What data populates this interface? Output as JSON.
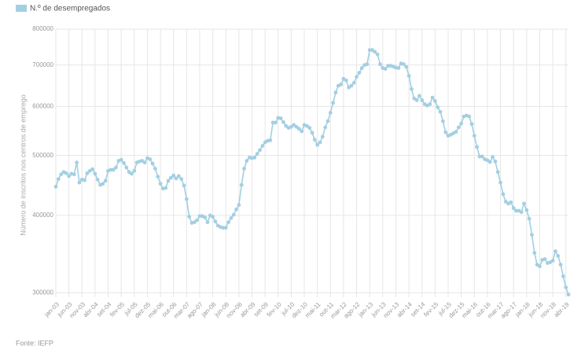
{
  "chart_data": {
    "type": "line",
    "y_label": "Número de inscritos nos centros de emprego",
    "source": "Fonte: IEFP",
    "log_scale": true,
    "grid": true,
    "legend": "top-left",
    "ylim": [
      295000,
      800000
    ],
    "yticks": [
      300000,
      400000,
      500000,
      600000,
      700000,
      800000
    ],
    "categories": [
      "jan-03",
      null,
      null,
      null,
      null,
      "jun-03",
      null,
      null,
      null,
      null,
      "nov-03",
      null,
      null,
      null,
      null,
      "abr-04",
      null,
      null,
      null,
      null,
      "set-04",
      null,
      null,
      null,
      null,
      "fev-05",
      null,
      null,
      null,
      null,
      "jul-05",
      null,
      null,
      null,
      null,
      "dez-05",
      null,
      null,
      null,
      null,
      "mai-06",
      null,
      null,
      null,
      null,
      "out-06",
      null,
      null,
      null,
      null,
      "mar-07",
      null,
      null,
      null,
      null,
      "ago-07",
      null,
      null,
      null,
      null,
      "jan-08",
      null,
      null,
      null,
      null,
      "jun-08",
      null,
      null,
      null,
      null,
      "nov-08",
      null,
      null,
      null,
      null,
      "abr-09",
      null,
      null,
      null,
      null,
      "set-09",
      null,
      null,
      null,
      null,
      "fev-10",
      null,
      null,
      null,
      null,
      "jul-10",
      null,
      null,
      null,
      null,
      "dez-10",
      null,
      null,
      null,
      null,
      "mai-11",
      null,
      null,
      null,
      null,
      "out-11",
      null,
      null,
      null,
      null,
      "mar-12",
      null,
      null,
      null,
      null,
      "ago-12",
      null,
      null,
      null,
      null,
      "jan-13",
      null,
      null,
      null,
      null,
      "jun-13",
      null,
      null,
      null,
      null,
      "nov-13",
      null,
      null,
      null,
      null,
      "abr-14",
      null,
      null,
      null,
      null,
      "set-14",
      null,
      null,
      null,
      null,
      "fev-15",
      null,
      null,
      null,
      null,
      "jul-15",
      null,
      null,
      null,
      null,
      "dez-15",
      null,
      null,
      null,
      null,
      "mai-16",
      null,
      null,
      null,
      null,
      "out-16",
      null,
      null,
      null,
      null,
      "mar-17",
      null,
      null,
      null,
      null,
      "ago-17",
      null,
      null,
      null,
      null,
      "jan-18",
      null,
      null,
      null,
      null,
      "jun-18",
      null,
      null,
      null,
      null,
      "nov-18",
      null,
      null,
      null,
      null,
      "abr-19",
      null
    ],
    "series": [
      {
        "name": "N.º de desempregados",
        "color": "#a3cfe2",
        "values": [
          445000,
          458000,
          466000,
          470000,
          468000,
          463000,
          467000,
          466000,
          487000,
          452000,
          457000,
          456000,
          468000,
          472000,
          475000,
          467000,
          457000,
          448000,
          450000,
          455000,
          472000,
          474000,
          474000,
          478000,
          490000,
          492000,
          486000,
          478000,
          470000,
          467000,
          472000,
          487000,
          489000,
          490000,
          487000,
          495000,
          493000,
          485000,
          476000,
          462000,
          450000,
          442000,
          443000,
          455000,
          460000,
          464000,
          459000,
          463000,
          458000,
          447000,
          425000,
          398000,
          389000,
          390000,
          393000,
          399000,
          399000,
          397000,
          390000,
          400000,
          398000,
          391000,
          385000,
          383000,
          382000,
          382000,
          390000,
          396000,
          401000,
          409000,
          416000,
          448000,
          476000,
          490000,
          496000,
          495000,
          496000,
          503000,
          510000,
          518000,
          525000,
          528000,
          529000,
          565000,
          565000,
          575000,
          574000,
          566000,
          558000,
          554000,
          556000,
          560000,
          556000,
          552000,
          547000,
          560000,
          558000,
          554000,
          544000,
          530000,
          520000,
          525000,
          536000,
          555000,
          568000,
          586000,
          608000,
          632000,
          648000,
          651000,
          665000,
          661000,
          644000,
          648000,
          655000,
          670000,
          680000,
          692000,
          700000,
          702000,
          740000,
          740000,
          735000,
          728000,
          702000,
          692000,
          690000,
          698000,
          698000,
          696000,
          693000,
          692000,
          704000,
          702000,
          695000,
          672000,
          640000,
          618000,
          614000,
          624000,
          614000,
          605000,
          602000,
          605000,
          620000,
          612000,
          598000,
          588000,
          568000,
          545000,
          538000,
          540000,
          543000,
          546000,
          555000,
          563000,
          578000,
          580000,
          578000,
          562000,
          538000,
          516000,
          498000,
          498000,
          493000,
          491000,
          488000,
          497000,
          489000,
          470000,
          452000,
          433000,
          421000,
          418000,
          420000,
          411000,
          407000,
          407000,
          405000,
          418000,
          408000,
          395000,
          372000,
          348000,
          333000,
          331000,
          339000,
          340000,
          335000,
          336000,
          338000,
          350000,
          344000,
          333000,
          319000,
          306000,
          298000
        ]
      }
    ]
  }
}
